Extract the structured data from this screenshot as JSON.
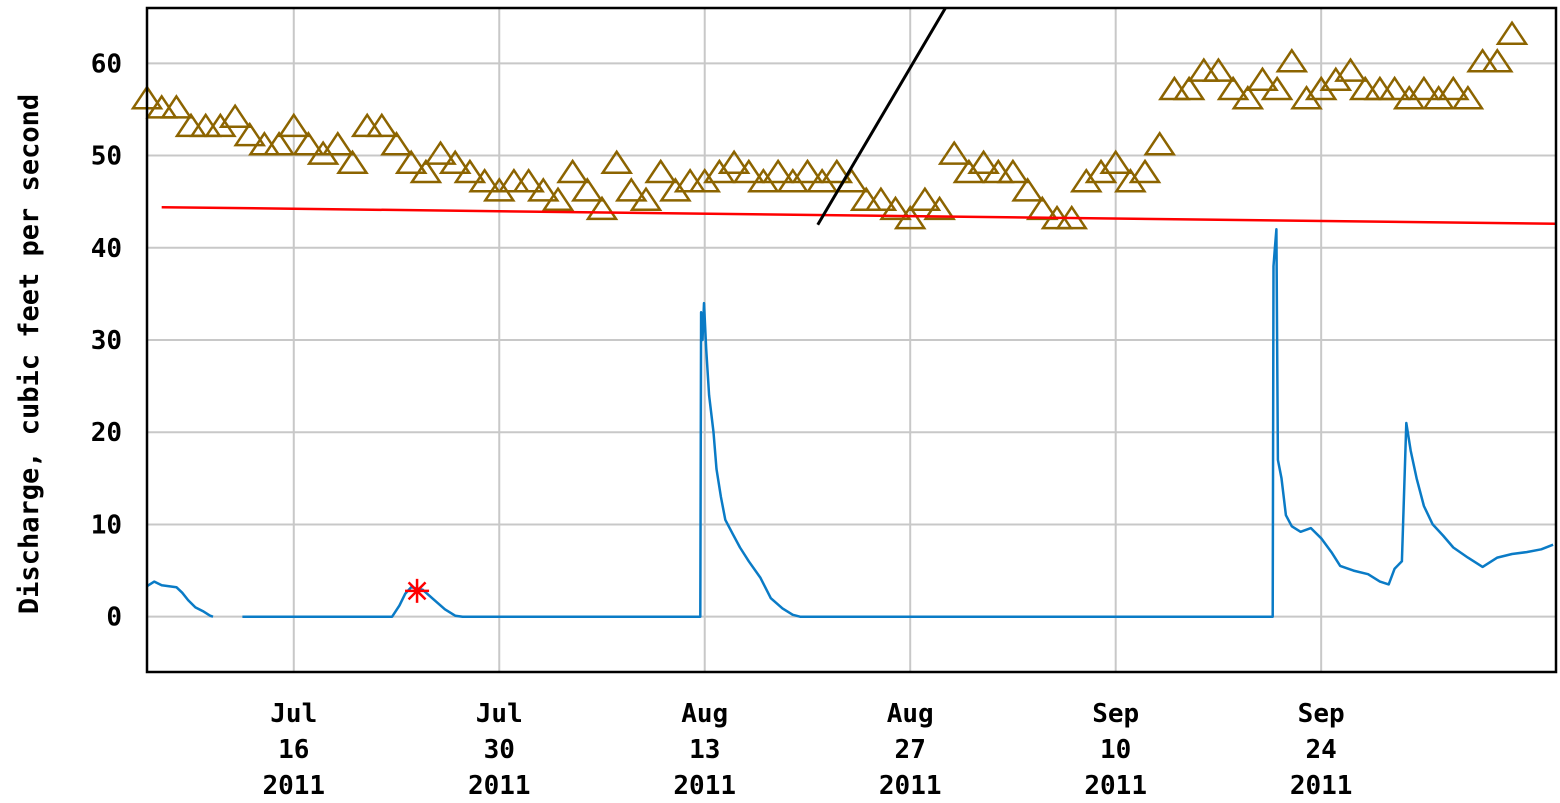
{
  "chart_data": {
    "type": "line",
    "title": "",
    "xlabel": "",
    "ylabel": "Discharge, cubic feet per second",
    "xlim": [
      "2011-07-06",
      "2011-10-10"
    ],
    "ylim": [
      -6,
      66
    ],
    "yticks": [
      0,
      10,
      20,
      30,
      40,
      50,
      60
    ],
    "xticks": [
      {
        "date": "2011-07-16",
        "month": "Jul",
        "day": "16",
        "year": "2011"
      },
      {
        "date": "2011-07-30",
        "month": "Jul",
        "day": "30",
        "year": "2011"
      },
      {
        "date": "2011-08-13",
        "month": "Aug",
        "day": "13",
        "year": "2011"
      },
      {
        "date": "2011-08-27",
        "month": "Aug",
        "day": "27",
        "year": "2011"
      },
      {
        "date": "2011-09-10",
        "month": "Sep",
        "day": "10",
        "year": "2011"
      },
      {
        "date": "2011-09-24",
        "month": "Sep",
        "day": "24",
        "year": "2011"
      }
    ],
    "grid": true,
    "colors": {
      "discharge": "#0a7bc6",
      "median": "#8c6400",
      "trend": "#ff0000",
      "marker": "#ff0000",
      "annotation": "#000000",
      "grid": "#c8c8c8"
    },
    "series": [
      {
        "kind": "discharge-line",
        "points": [
          [
            "2011-07-06",
            3.3
          ],
          [
            "2011-07-06.5",
            3.8
          ],
          [
            "2011-07-07",
            3.4
          ],
          [
            "2011-07-08",
            3.2
          ],
          [
            "2011-07-08.4",
            2.6
          ],
          [
            "2011-07-08.8",
            1.8
          ],
          [
            "2011-07-09.3",
            1.0
          ],
          [
            "2011-07-09.8",
            0.6
          ],
          [
            "2011-07-10.3",
            0.1
          ],
          [
            "2011-07-10.5",
            0.0
          ],
          null,
          [
            "2011-07-12.5",
            0.0
          ],
          [
            "2011-07-22.7",
            0.0
          ],
          [
            "2011-07-23.2",
            1.2
          ],
          [
            "2011-07-23.6",
            2.5
          ],
          [
            "2011-07-24",
            3.2
          ],
          [
            "2011-07-24.8",
            2.9
          ],
          [
            "2011-07-25.5",
            1.9
          ],
          [
            "2011-07-26.3",
            0.8
          ],
          [
            "2011-07-27",
            0.1
          ],
          [
            "2011-07-27.5",
            0.0
          ],
          [
            "2011-08-12.7",
            0.0
          ],
          [
            "2011-08-12.75",
            33.0
          ],
          [
            "2011-08-12.85",
            30.0
          ],
          [
            "2011-08-12.95",
            34.0
          ],
          [
            "2011-08-13.1",
            29.0
          ],
          [
            "2011-08-13.3",
            24.0
          ],
          [
            "2011-08-13.6",
            20.0
          ],
          [
            "2011-08-13.8",
            16.0
          ],
          [
            "2011-08-14.1",
            13.0
          ],
          [
            "2011-08-14.4",
            10.5
          ],
          [
            "2011-08-14.9",
            9.0
          ],
          [
            "2011-08-15.4",
            7.5
          ],
          [
            "2011-08-16",
            6.0
          ],
          [
            "2011-08-16.8",
            4.2
          ],
          [
            "2011-08-17.5",
            2.0
          ],
          [
            "2011-08-18.3",
            0.9
          ],
          [
            "2011-08-19",
            0.2
          ],
          [
            "2011-08-19.5",
            0.0
          ],
          [
            "2011-09-20.7",
            0.0
          ],
          [
            "2011-09-20.75",
            38.0
          ],
          [
            "2011-09-20.85",
            40.0
          ],
          [
            "2011-09-20.95",
            42.0
          ],
          [
            "2011-09-21.05",
            17.0
          ],
          [
            "2011-09-21.3",
            15.0
          ],
          [
            "2011-09-21.6",
            11.0
          ],
          [
            "2011-09-22",
            9.8
          ],
          [
            "2011-09-22.6",
            9.2
          ],
          [
            "2011-09-23.3",
            9.6
          ],
          [
            "2011-09-24",
            8.5
          ],
          [
            "2011-09-24.7",
            7.0
          ],
          [
            "2011-09-25.3",
            5.5
          ],
          [
            "2011-09-26.2",
            5.0
          ],
          [
            "2011-09-27.2",
            4.6
          ],
          [
            "2011-09-28",
            3.8
          ],
          [
            "2011-09-28.6",
            3.5
          ],
          [
            "2011-09-29",
            5.2
          ],
          [
            "2011-09-29.5",
            6.0
          ],
          [
            "2011-09-29.8",
            21.0
          ],
          [
            "2011-09-30.1",
            18.0
          ],
          [
            "2011-09-30.5",
            15.0
          ],
          [
            "2011-09-31",
            12.0
          ],
          [
            "2011-09-31.6",
            10.0
          ],
          [
            "2011-10-02.3",
            8.8
          ],
          [
            "2011-10-03",
            7.5
          ],
          [
            "2011-10-04",
            6.4
          ],
          [
            "2011-10-05",
            5.4
          ],
          [
            "2011-10-06",
            6.4
          ],
          [
            "2011-10-07",
            6.8
          ],
          [
            "2011-10-08",
            7.0
          ],
          [
            "2011-10-09",
            7.3
          ],
          [
            "2011-10-09.8",
            7.8
          ]
        ]
      },
      {
        "kind": "median-markers",
        "points": [
          [
            "2011-07-06",
            56
          ],
          [
            "2011-07-07",
            55
          ],
          [
            "2011-07-08",
            55
          ],
          [
            "2011-07-09",
            53
          ],
          [
            "2011-07-10",
            53
          ],
          [
            "2011-07-11",
            53
          ],
          [
            "2011-07-12",
            54
          ],
          [
            "2011-07-13",
            52
          ],
          [
            "2011-07-14",
            51
          ],
          [
            "2011-07-15",
            51
          ],
          [
            "2011-07-16",
            53
          ],
          [
            "2011-07-17",
            51
          ],
          [
            "2011-07-18",
            50
          ],
          [
            "2011-07-19",
            51
          ],
          [
            "2011-07-20",
            49
          ],
          [
            "2011-07-21",
            53
          ],
          [
            "2011-07-22",
            53
          ],
          [
            "2011-07-23",
            51
          ],
          [
            "2011-07-24",
            49
          ],
          [
            "2011-07-25",
            48
          ],
          [
            "2011-07-26",
            50
          ],
          [
            "2011-07-27",
            49
          ],
          [
            "2011-07-28",
            48
          ],
          [
            "2011-07-29",
            47
          ],
          [
            "2011-07-30",
            46
          ],
          [
            "2011-07-31",
            47
          ],
          [
            "2011-08-01",
            47
          ],
          [
            "2011-08-02",
            46
          ],
          [
            "2011-08-03",
            45
          ],
          [
            "2011-08-04",
            48
          ],
          [
            "2011-08-05",
            46
          ],
          [
            "2011-08-06",
            44
          ],
          [
            "2011-08-07",
            49
          ],
          [
            "2011-08-08",
            46
          ],
          [
            "2011-08-09",
            45
          ],
          [
            "2011-08-10",
            48
          ],
          [
            "2011-08-11",
            46
          ],
          [
            "2011-08-12",
            47
          ],
          [
            "2011-08-13",
            47
          ],
          [
            "2011-08-14",
            48
          ],
          [
            "2011-08-15",
            49
          ],
          [
            "2011-08-16",
            48
          ],
          [
            "2011-08-17",
            47
          ],
          [
            "2011-08-18",
            48
          ],
          [
            "2011-08-19",
            47
          ],
          [
            "2011-08-20",
            48
          ],
          [
            "2011-08-21",
            47
          ],
          [
            "2011-08-22",
            48
          ],
          [
            "2011-08-23",
            47
          ],
          [
            "2011-08-24",
            45
          ],
          [
            "2011-08-25",
            45
          ],
          [
            "2011-08-26",
            44
          ],
          [
            "2011-08-27",
            43
          ],
          [
            "2011-08-28",
            45
          ],
          [
            "2011-08-29",
            44
          ],
          [
            "2011-08-30",
            50
          ],
          [
            "2011-08-31",
            48
          ],
          [
            "2011-09-01",
            49
          ],
          [
            "2011-09-02",
            48
          ],
          [
            "2011-09-03",
            48
          ],
          [
            "2011-09-04",
            46
          ],
          [
            "2011-09-05",
            44
          ],
          [
            "2011-09-06",
            43
          ],
          [
            "2011-09-07",
            43
          ],
          [
            "2011-09-08",
            47
          ],
          [
            "2011-09-09",
            48
          ],
          [
            "2011-09-10",
            49
          ],
          [
            "2011-09-11",
            47
          ],
          [
            "2011-09-12",
            48
          ],
          [
            "2011-09-13",
            51
          ],
          [
            "2011-09-14",
            57
          ],
          [
            "2011-09-15",
            57
          ],
          [
            "2011-09-16",
            59
          ],
          [
            "2011-09-17",
            59
          ],
          [
            "2011-09-18",
            57
          ],
          [
            "2011-09-19",
            56
          ],
          [
            "2011-09-20",
            58
          ],
          [
            "2011-09-21",
            57
          ],
          [
            "2011-09-22",
            60
          ],
          [
            "2011-09-23",
            56
          ],
          [
            "2011-09-24",
            57
          ],
          [
            "2011-09-25",
            58
          ],
          [
            "2011-09-26",
            59
          ],
          [
            "2011-09-27",
            57
          ],
          [
            "2011-09-28",
            57
          ],
          [
            "2011-09-29",
            57
          ],
          [
            "2011-09-30",
            56
          ],
          [
            "2011-10-01",
            57
          ],
          [
            "2011-10-02",
            56
          ],
          [
            "2011-10-03",
            57
          ],
          [
            "2011-10-04",
            56
          ],
          [
            "2011-10-05",
            60
          ],
          [
            "2011-10-06",
            60
          ],
          [
            "2011-10-07",
            63
          ]
        ]
      },
      {
        "kind": "trend-line",
        "points": [
          [
            "2011-07-07",
            44.4
          ],
          [
            "2011-10-10",
            42.6
          ]
        ]
      },
      {
        "kind": "annotation-line",
        "points": [
          [
            "2011-08-20.7",
            42.5
          ],
          [
            "2011-08-29.4",
            66.0
          ]
        ]
      },
      {
        "kind": "red-asterisk",
        "points": [
          [
            "2011-07-24.4",
            2.8
          ]
        ]
      }
    ]
  }
}
